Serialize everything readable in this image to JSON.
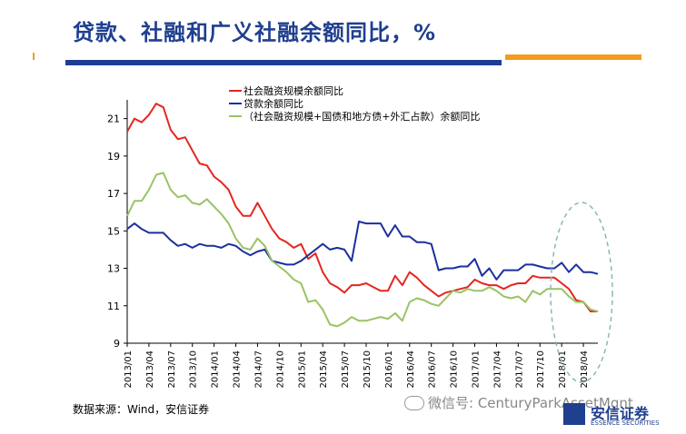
{
  "title": "贷款、社融和广义社融余额同比，%",
  "source": "数据来源：Wind，安信证券",
  "watermark": "微信号: CenturyParkAssetMgnt",
  "logo": {
    "cn": "安信证券",
    "en": "ESSENCE SECURITIES"
  },
  "colors": {
    "title": "#1f3f8f",
    "accent_blue": "#1c3f94",
    "accent_orange": "#f39c1f"
  },
  "chart_data": {
    "type": "line",
    "ylim": [
      9,
      22
    ],
    "yticks": [
      9,
      11,
      13,
      15,
      17,
      19,
      21
    ],
    "xticks": [
      "2013/01",
      "2013/04",
      "2013/07",
      "2013/10",
      "2014/01",
      "2014/04",
      "2014/07",
      "2014/10",
      "2015/01",
      "2015/04",
      "2015/07",
      "2015/10",
      "2016/01",
      "2016/04",
      "2016/07",
      "2016/10",
      "2017/01",
      "2017/04",
      "2017/07",
      "2017/10",
      "2018/01",
      "2018/04"
    ],
    "x_start": "2013/01",
    "x_end": "2018/04",
    "legend_position": "top-left",
    "series": [
      {
        "name": "社会融资规模余额同比",
        "color": "#e5261f",
        "values": [
          20.3,
          21.0,
          20.8,
          21.2,
          21.8,
          21.6,
          20.4,
          19.9,
          20.0,
          19.3,
          18.6,
          18.5,
          17.9,
          17.6,
          17.2,
          16.3,
          15.8,
          15.8,
          16.5,
          15.8,
          15.1,
          14.6,
          14.4,
          14.1,
          14.3,
          13.5,
          13.8,
          12.8,
          12.2,
          12.0,
          11.7,
          12.1,
          12.1,
          12.2,
          12.0,
          11.8,
          11.8,
          12.6,
          12.1,
          12.8,
          12.5,
          12.1,
          11.8,
          11.5,
          11.7,
          11.8,
          11.9,
          12.0,
          12.4,
          12.2,
          12.1,
          12.1,
          11.9,
          12.1,
          12.2,
          12.2,
          12.6,
          12.5,
          12.5,
          12.5,
          12.2,
          11.9,
          11.3,
          11.2,
          10.7,
          10.7
        ]
      },
      {
        "name": "贷款余额同比",
        "color": "#1c2f9e",
        "values": [
          15.1,
          15.4,
          15.1,
          14.9,
          14.9,
          14.9,
          14.5,
          14.2,
          14.3,
          14.1,
          14.3,
          14.2,
          14.2,
          14.1,
          14.3,
          14.2,
          13.9,
          13.7,
          13.9,
          14.0,
          13.4,
          13.3,
          13.2,
          13.2,
          13.4,
          13.7,
          14.0,
          14.3,
          14.0,
          14.1,
          14.0,
          13.4,
          15.5,
          15.4,
          15.4,
          15.4,
          14.7,
          15.3,
          14.7,
          14.7,
          14.4,
          14.4,
          14.3,
          12.9,
          13.0,
          13.0,
          13.1,
          13.1,
          13.5,
          12.6,
          13.0,
          12.4,
          12.9,
          12.9,
          12.9,
          13.2,
          13.2,
          13.1,
          13.0,
          13.0,
          13.3,
          12.8,
          13.2,
          12.8,
          12.8,
          12.7
        ]
      },
      {
        "name": "（社会融资规模+国债和地方债+外汇占款）余额同比",
        "color": "#9ac365",
        "values": [
          15.8,
          16.6,
          16.6,
          17.2,
          18.0,
          18.1,
          17.2,
          16.8,
          16.9,
          16.5,
          16.4,
          16.7,
          16.3,
          15.9,
          15.4,
          14.6,
          14.1,
          14.0,
          14.6,
          14.2,
          13.4,
          13.1,
          12.8,
          12.4,
          12.2,
          11.2,
          11.3,
          10.8,
          10.0,
          9.9,
          10.1,
          10.4,
          10.2,
          10.2,
          10.3,
          10.4,
          10.3,
          10.6,
          10.2,
          11.2,
          11.4,
          11.3,
          11.1,
          11.0,
          11.4,
          11.8,
          11.7,
          11.9,
          11.8,
          11.8,
          12.0,
          11.8,
          11.5,
          11.4,
          11.5,
          11.2,
          11.8,
          11.6,
          11.9,
          11.9,
          11.9,
          11.5,
          11.2,
          11.2,
          10.8,
          10.7
        ]
      }
    ]
  }
}
